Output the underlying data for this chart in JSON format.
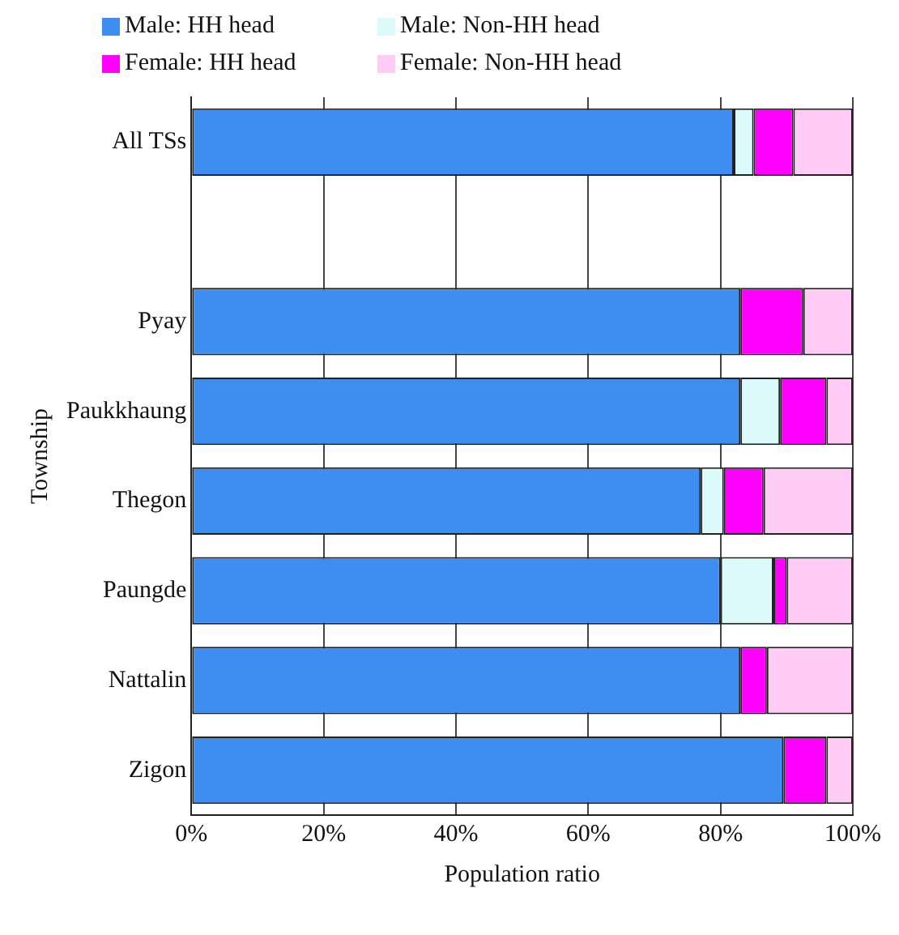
{
  "chart_data": {
    "type": "bar",
    "orientation": "horizontal",
    "stacked": true,
    "categories": [
      "All TSs",
      null,
      "Pyay",
      "Paukkhaung",
      "Thegon",
      "Paungde",
      "Nattalin",
      "Zigon"
    ],
    "series": [
      {
        "name": "Male: HH head",
        "color": "#3d8ef0",
        "values": [
          82,
          null,
          83,
          83,
          77,
          80,
          83,
          89.5
        ]
      },
      {
        "name": "Male: Non-HH head",
        "color": "#dcfafa",
        "values": [
          3,
          null,
          0,
          6,
          3.5,
          8,
          0,
          0
        ]
      },
      {
        "name": "Female: HH head",
        "color": "#ff00ff",
        "values": [
          6,
          null,
          9.5,
          7,
          6,
          2,
          4,
          6.5
        ]
      },
      {
        "name": "Female: Non-HH head",
        "color": "#ffccf5",
        "values": [
          9,
          null,
          7.5,
          4,
          13.5,
          10,
          13,
          4
        ]
      }
    ],
    "xlim": [
      0,
      100
    ],
    "xticks": [
      {
        "value": 0,
        "label": "0%"
      },
      {
        "value": 20,
        "label": "20%"
      },
      {
        "value": 40,
        "label": "40%"
      },
      {
        "value": 60,
        "label": "60%"
      },
      {
        "value": 80,
        "label": "80%"
      },
      {
        "value": 100,
        "label": "100%"
      }
    ],
    "xlabel": "Population ratio",
    "ylabel": "Township",
    "grid": "x",
    "legend": "top"
  }
}
